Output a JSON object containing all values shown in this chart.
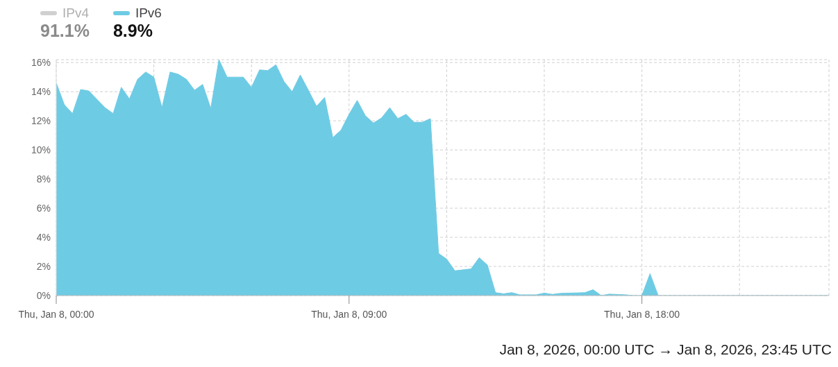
{
  "chart_data": {
    "type": "area",
    "series": [
      {
        "name": "IPv4",
        "color": "#d0d0d0"
      },
      {
        "name": "IPv6",
        "color": "#6ecbe4",
        "x": [
          "2026-01-08T00:00",
          "2026-01-08T00:15",
          "2026-01-08T00:30",
          "2026-01-08T00:45",
          "2026-01-08T01:00",
          "2026-01-08T01:30",
          "2026-01-08T01:45",
          "2026-01-08T02:00",
          "2026-01-08T02:15",
          "2026-01-08T02:30",
          "2026-01-08T02:45",
          "2026-01-08T03:00",
          "2026-01-08T03:15",
          "2026-01-08T03:30",
          "2026-01-08T03:45",
          "2026-01-08T04:00",
          "2026-01-08T04:15",
          "2026-01-08T04:30",
          "2026-01-08T04:45",
          "2026-01-08T05:00",
          "2026-01-08T05:15",
          "2026-01-08T05:45",
          "2026-01-08T06:00",
          "2026-01-08T06:15",
          "2026-01-08T06:30",
          "2026-01-08T06:45",
          "2026-01-08T07:00",
          "2026-01-08T07:15",
          "2026-01-08T07:30",
          "2026-01-08T07:45",
          "2026-01-08T08:00",
          "2026-01-08T08:15",
          "2026-01-08T08:30",
          "2026-01-08T08:45",
          "2026-01-08T09:00",
          "2026-01-08T09:15",
          "2026-01-08T09:30",
          "2026-01-08T09:45",
          "2026-01-08T10:00",
          "2026-01-08T10:15",
          "2026-01-08T10:30",
          "2026-01-08T10:45",
          "2026-01-08T11:00",
          "2026-01-08T11:15",
          "2026-01-08T11:30",
          "2026-01-08T11:45",
          "2026-01-08T12:00",
          "2026-01-08T12:15",
          "2026-01-08T12:45",
          "2026-01-08T13:00",
          "2026-01-08T13:15",
          "2026-01-08T13:30",
          "2026-01-08T13:45",
          "2026-01-08T14:00",
          "2026-01-08T14:15",
          "2026-01-08T14:45",
          "2026-01-08T15:00",
          "2026-01-08T15:15",
          "2026-01-08T15:30",
          "2026-01-08T16:15",
          "2026-01-08T16:30",
          "2026-01-08T16:45",
          "2026-01-08T17:00",
          "2026-01-08T17:30",
          "2026-01-08T17:45",
          "2026-01-08T18:00",
          "2026-01-08T18:15",
          "2026-01-08T18:30",
          "2026-01-08T23:45"
        ],
        "values": [
          14.6,
          13.1,
          12.5,
          14.15,
          14.05,
          12.9,
          12.5,
          14.3,
          13.5,
          14.85,
          15.35,
          15.0,
          12.9,
          15.35,
          15.2,
          14.85,
          14.1,
          14.5,
          12.85,
          16.2,
          15.0,
          15.0,
          14.3,
          15.5,
          15.45,
          15.85,
          14.7,
          14.0,
          15.15,
          14.1,
          13.0,
          13.6,
          10.85,
          11.35,
          12.45,
          13.4,
          12.35,
          11.85,
          12.2,
          12.9,
          12.15,
          12.45,
          11.9,
          11.9,
          12.15,
          2.9,
          2.5,
          1.7,
          1.83,
          2.6,
          2.1,
          0.2,
          0.12,
          0.2,
          0.05,
          0.05,
          0.17,
          0.08,
          0.15,
          0.2,
          0.4,
          0,
          0.1,
          0.05,
          0,
          0,
          1.5,
          0,
          0
        ]
      }
    ],
    "xlim": [
      "2026-01-08T00:00",
      "2026-01-08T23:45"
    ],
    "xticks": [
      {
        "value": "2026-01-08T00:00",
        "label": "Thu, Jan 8, 00:00"
      },
      {
        "value": "2026-01-08T03:00",
        "label": null
      },
      {
        "value": "2026-01-08T06:00",
        "label": null
      },
      {
        "value": "2026-01-08T09:00",
        "label": "Thu, Jan 8, 09:00"
      },
      {
        "value": "2026-01-08T12:00",
        "label": null
      },
      {
        "value": "2026-01-08T15:00",
        "label": null
      },
      {
        "value": "2026-01-08T18:00",
        "label": "Thu, Jan 8, 18:00"
      },
      {
        "value": "2026-01-08T21:00",
        "label": null
      }
    ],
    "ylim": [
      0,
      16.2
    ],
    "yticks": [
      {
        "value": 0,
        "label": "0%"
      },
      {
        "value": 2,
        "label": "2%"
      },
      {
        "value": 4,
        "label": "4%"
      },
      {
        "value": 6,
        "label": "6%"
      },
      {
        "value": 8,
        "label": "8%"
      },
      {
        "value": 10,
        "label": "10%"
      },
      {
        "value": 12,
        "label": "12%"
      },
      {
        "value": 14,
        "label": "14%"
      },
      {
        "value": 16,
        "label": "16%"
      }
    ],
    "grid": true,
    "legend": "top left",
    "annotations": [
      "91.1%",
      "8.9%",
      "Jan 8, 2026, 00:00 UTC → Jan 8, 2026, 23:45 UTC"
    ]
  }
}
